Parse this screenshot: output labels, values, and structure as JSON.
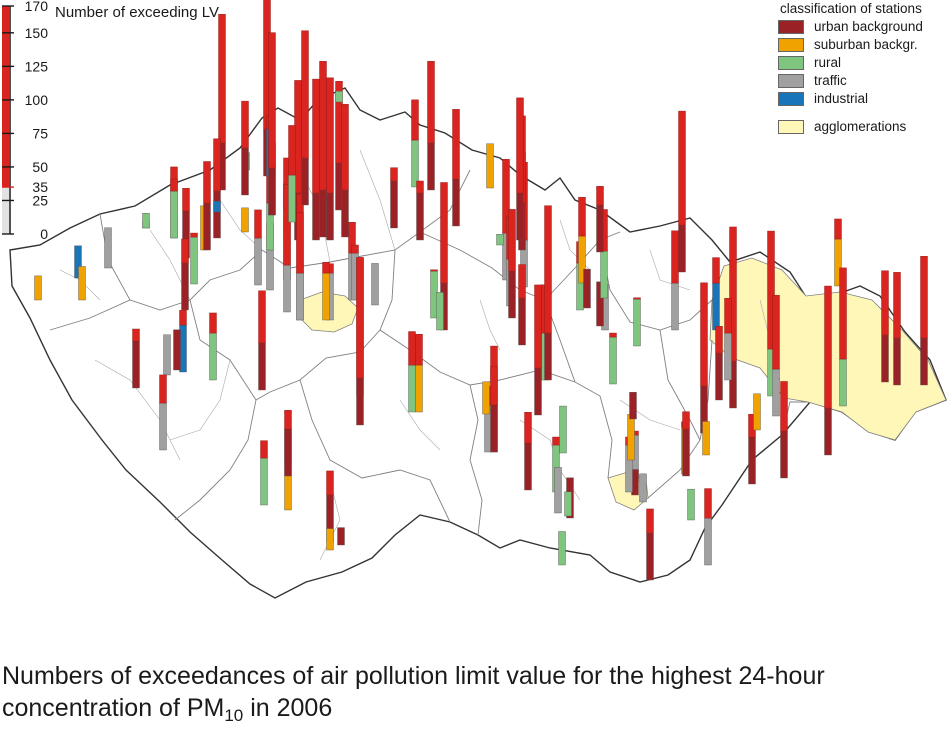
{
  "scale": {
    "title": "Number of exceeding LV",
    "ticks": [
      {
        "value": 170,
        "label": "170",
        "highlight": false
      },
      {
        "value": 150,
        "label": "150",
        "highlight": false
      },
      {
        "value": 125,
        "label": "125",
        "highlight": false
      },
      {
        "value": 100,
        "label": "100",
        "highlight": false
      },
      {
        "value": 75,
        "label": "75",
        "highlight": false
      },
      {
        "value": 50,
        "label": "50",
        "highlight": false
      },
      {
        "value": 35,
        "label": "35",
        "highlight": true
      },
      {
        "value": 25,
        "label": "25",
        "highlight": false
      },
      {
        "value": 0,
        "label": "0",
        "highlight": false
      }
    ],
    "limit_value": 35,
    "max_value": 170
  },
  "legend": {
    "title": "classification of stations",
    "items": [
      {
        "key": "urban_background",
        "label": "urban background",
        "color": "#9a2226"
      },
      {
        "key": "suburban_background",
        "label": "suburban backgr.",
        "color": "#f0a300"
      },
      {
        "key": "rural",
        "label": "rural",
        "color": "#7fc47f"
      },
      {
        "key": "traffic",
        "label": "traffic",
        "color": "#a0a0a0"
      },
      {
        "key": "industrial",
        "label": "industrial",
        "color": "#1a74b8"
      }
    ],
    "agglomerations": {
      "label": "agglomerations",
      "color": "#fff7b8"
    }
  },
  "colors": {
    "exceed": "#d9241f",
    "border_outer": "#333333",
    "border_inner": "#808080"
  },
  "caption": {
    "line1": "Numbers of exceedances of air pollution limit value for the highest 24-hour",
    "line2_prefix": "concentration of PM",
    "line2_sub": "10",
    "line2_suffix": " in 2006"
  },
  "stations": [
    {
      "cls": "suburban_background",
      "value": 18
    },
    {
      "cls": "industrial",
      "value": 24
    },
    {
      "cls": "suburban_background",
      "value": 25
    },
    {
      "cls": "traffic",
      "value": 30
    },
    {
      "cls": "rural",
      "value": 5
    },
    {
      "cls": "urban_background",
      "value": 53
    },
    {
      "cls": "rural",
      "value": 44
    },
    {
      "cls": "urban_background",
      "value": 52
    },
    {
      "cls": "suburban_background",
      "value": 33
    },
    {
      "cls": "urban_background",
      "value": 66
    },
    {
      "cls": "rural",
      "value": 38
    },
    {
      "cls": "urban_background",
      "value": 131
    },
    {
      "cls": "urban_background",
      "value": 74
    },
    {
      "cls": "industrial",
      "value": 8
    },
    {
      "cls": "rural",
      "value": 13
    },
    {
      "cls": "suburban_background",
      "value": 18
    },
    {
      "cls": "urban_background",
      "value": 70
    },
    {
      "cls": "traffic",
      "value": 56
    },
    {
      "cls": "traffic",
      "value": 50
    },
    {
      "cls": "rural",
      "value": 60
    },
    {
      "cls": "urban_background",
      "value": 145
    },
    {
      "cls": "industrial",
      "value": 45
    },
    {
      "cls": "rural",
      "value": 20
    },
    {
      "cls": "urban_background",
      "value": 91
    },
    {
      "cls": "traffic",
      "value": 95
    },
    {
      "cls": "urban_background",
      "value": 119
    },
    {
      "cls": "urban_background",
      "value": 94
    },
    {
      "cls": "traffic",
      "value": 80
    },
    {
      "cls": "rural",
      "value": 72
    },
    {
      "cls": "urban_background",
      "value": 130
    },
    {
      "cls": "urban_background",
      "value": 120
    },
    {
      "cls": "urban_background",
      "value": 121
    },
    {
      "cls": "traffic",
      "value": 42
    },
    {
      "cls": "urban_background",
      "value": 96
    },
    {
      "cls": "suburban_background",
      "value": 43
    },
    {
      "cls": "traffic",
      "value": 58
    },
    {
      "cls": "urban_background",
      "value": 131
    },
    {
      "cls": "urban_background",
      "value": 99
    },
    {
      "cls": "traffic",
      "value": 41
    },
    {
      "cls": "traffic",
      "value": 31
    },
    {
      "cls": "rural",
      "value": 11
    },
    {
      "cls": "urban_background",
      "value": 44
    },
    {
      "cls": "urban_background",
      "value": 53
    },
    {
      "cls": "industrial",
      "value": 46
    },
    {
      "cls": "urban_background",
      "value": 30
    },
    {
      "cls": "traffic",
      "value": 30
    },
    {
      "cls": "traffic",
      "value": 56
    },
    {
      "cls": "rural",
      "value": 50
    },
    {
      "cls": "suburban_background",
      "value": 61
    },
    {
      "cls": "urban_background",
      "value": 49
    },
    {
      "cls": "urban_background",
      "value": 74
    },
    {
      "cls": "urban_background",
      "value": 53
    },
    {
      "cls": "rural",
      "value": 8
    },
    {
      "cls": "urban_background",
      "value": 13
    },
    {
      "cls": "suburban_background",
      "value": 16
    },
    {
      "cls": "urban_background",
      "value": 45
    },
    {
      "cls": "rural",
      "value": 65
    },
    {
      "cls": "urban_background",
      "value": 96
    },
    {
      "cls": "traffic",
      "value": 90
    },
    {
      "cls": "traffic",
      "value": 93
    },
    {
      "cls": "urban_background",
      "value": 44
    },
    {
      "cls": "rural",
      "value": 8
    },
    {
      "cls": "suburban_background",
      "value": 33
    },
    {
      "cls": "rural",
      "value": 36
    },
    {
      "cls": "traffic",
      "value": 67
    },
    {
      "cls": "urban_background",
      "value": 100
    },
    {
      "cls": "urban_background",
      "value": 60
    },
    {
      "cls": "urban_background",
      "value": 81
    },
    {
      "cls": "rural",
      "value": 60
    },
    {
      "cls": "urban_background",
      "value": 102
    },
    {
      "cls": "rural",
      "value": 36
    },
    {
      "cls": "urban_background",
      "value": 87
    },
    {
      "cls": "urban_background",
      "value": 110
    },
    {
      "cls": "urban_background",
      "value": 79
    },
    {
      "cls": "urban_background",
      "value": 106
    },
    {
      "cls": "rural",
      "value": 71
    },
    {
      "cls": "urban_background",
      "value": 120
    },
    {
      "cls": "industrial",
      "value": 54
    },
    {
      "cls": "rural",
      "value": 51
    },
    {
      "cls": "urban_background",
      "value": 136
    },
    {
      "cls": "industrial",
      "value": 54
    },
    {
      "cls": "urban_background",
      "value": 135
    },
    {
      "cls": "urban_background",
      "value": 112
    },
    {
      "cls": "rural",
      "value": 123
    },
    {
      "cls": "traffic",
      "value": 90
    },
    {
      "cls": "urban_background",
      "value": 55
    },
    {
      "cls": "traffic",
      "value": 61
    },
    {
      "cls": "urban_background",
      "value": 52
    },
    {
      "cls": "suburban_background",
      "value": 27
    },
    {
      "cls": "rural",
      "value": 38
    },
    {
      "cls": "traffic",
      "value": 38
    },
    {
      "cls": "urban_background",
      "value": 19
    },
    {
      "cls": "traffic",
      "value": 41
    },
    {
      "cls": "suburban_background",
      "value": 34
    },
    {
      "cls": "traffic",
      "value": 21
    },
    {
      "cls": "suburban_background",
      "value": 39
    },
    {
      "cls": "urban_background",
      "value": 48
    },
    {
      "cls": "traffic",
      "value": 34
    },
    {
      "cls": "rural",
      "value": 23
    },
    {
      "cls": "suburban_background",
      "value": 25
    },
    {
      "cls": "traffic",
      "value": 74
    },
    {
      "cls": "urban_background",
      "value": 72
    },
    {
      "cls": "traffic",
      "value": 57
    },
    {
      "cls": "rural",
      "value": 25
    },
    {
      "cls": "rural",
      "value": 41
    },
    {
      "cls": "urban_background",
      "value": 30
    },
    {
      "cls": "rural",
      "value": 35
    },
    {
      "cls": "urban_background",
      "value": 58
    },
    {
      "cls": "rural",
      "value": 18
    },
    {
      "cls": "urban_background",
      "value": 97
    },
    {
      "cls": "urban_background",
      "value": 130
    },
    {
      "cls": "traffic",
      "value": 34
    },
    {
      "cls": "suburban_background",
      "value": 64
    },
    {
      "cls": "urban_background",
      "value": 29
    },
    {
      "cls": "urban_background",
      "value": 33
    },
    {
      "cls": "rural",
      "value": 66
    },
    {
      "cls": "urban_background",
      "value": 53
    },
    {
      "cls": "urban_background",
      "value": 49
    },
    {
      "cls": "rural",
      "value": 36
    },
    {
      "cls": "urban_background",
      "value": 20
    },
    {
      "cls": "traffic",
      "value": 49
    },
    {
      "cls": "urban_background",
      "value": 64
    },
    {
      "cls": "suburban_background",
      "value": 24
    },
    {
      "cls": "rural",
      "value": 28
    },
    {
      "cls": "suburban_background",
      "value": 58
    },
    {
      "cls": "urban_background",
      "value": 125
    },
    {
      "cls": "rural",
      "value": 48
    },
    {
      "cls": "urban_background",
      "value": 126
    },
    {
      "cls": "suburban_background",
      "value": 50
    },
    {
      "cls": "rural",
      "value": 103
    },
    {
      "cls": "urban_background",
      "value": 83
    },
    {
      "cls": "urban_background",
      "value": 84
    },
    {
      "cls": "urban_background",
      "value": 96
    }
  ]
}
